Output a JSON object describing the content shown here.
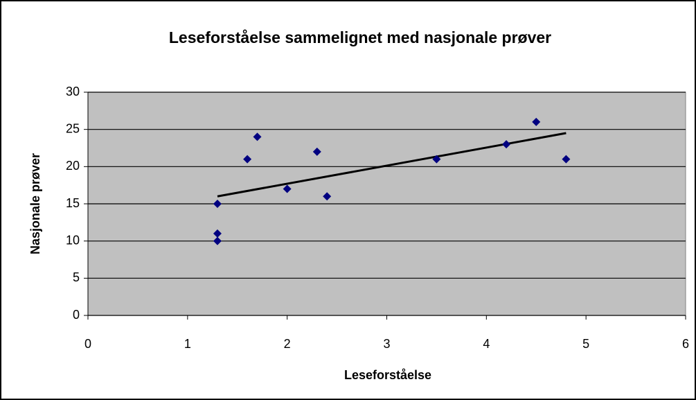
{
  "chart_data": {
    "type": "scatter",
    "title": "Leseforståelse sammelignet med nasjonale prøver",
    "x_label": "Leseforståelse",
    "y_label": "Nasjonale prøver",
    "x": [
      1.3,
      1.3,
      1.3,
      1.6,
      1.7,
      2.0,
      2.3,
      2.4,
      3.5,
      4.2,
      4.5,
      4.8
    ],
    "values": [
      15,
      11,
      10,
      21,
      24,
      17,
      22,
      16,
      21,
      23,
      26,
      21
    ],
    "color": "#000080",
    "trendline": {
      "x": [
        1.3,
        4.8
      ],
      "values": [
        16,
        24.5
      ],
      "color": "#000000"
    },
    "xlim": [
      0,
      6
    ],
    "xticks": [
      0,
      1,
      2,
      3,
      4,
      5,
      6
    ],
    "ylim": [
      0,
      30
    ],
    "yticks": [
      0,
      5,
      10,
      15,
      20,
      25,
      30
    ],
    "grid": true
  }
}
